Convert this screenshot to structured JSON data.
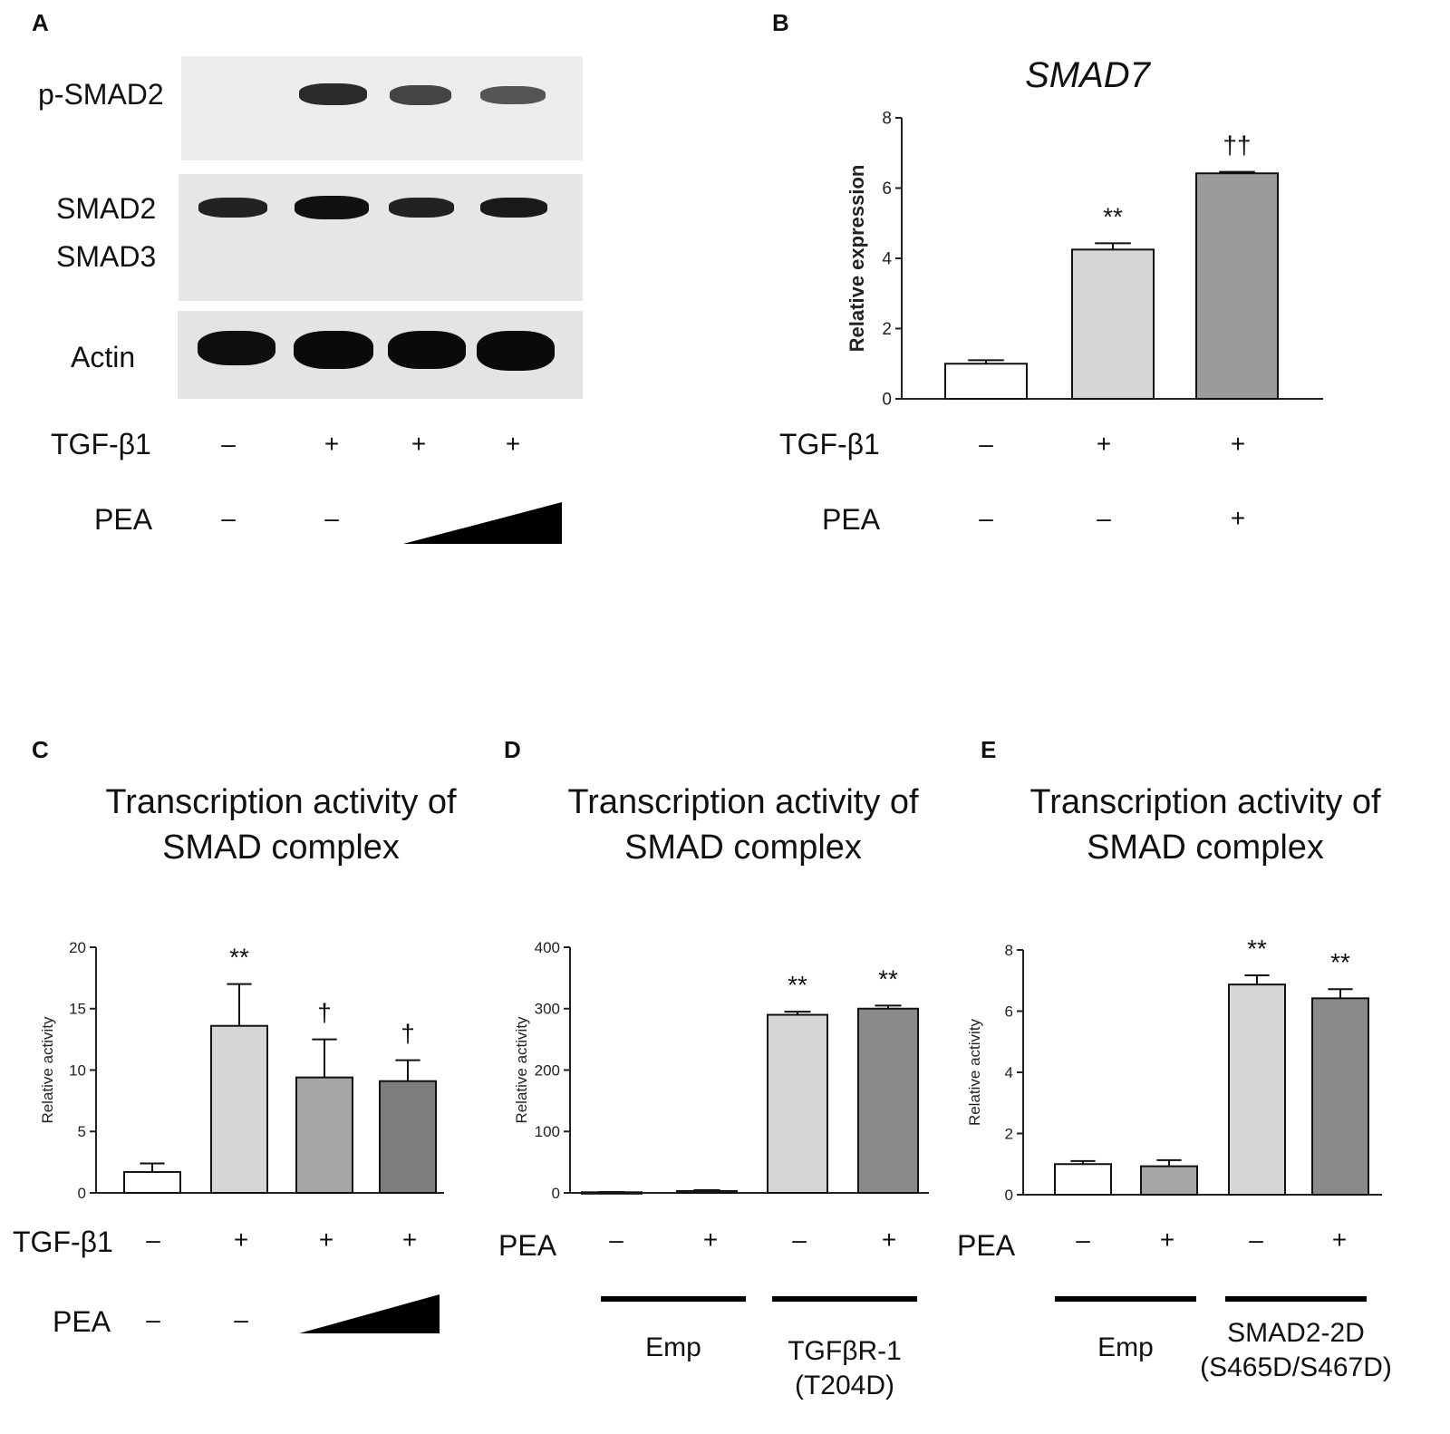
{
  "panel_a": {
    "letter": "A",
    "blot_labels": [
      "p-SMAD2",
      "SMAD2",
      "SMAD3",
      "Actin"
    ],
    "tgf_label": "TGF-β1",
    "tgf_signs": [
      "–",
      "+",
      "+",
      "+"
    ],
    "pea_label": "PEA",
    "pea_signs": [
      "–",
      "–"
    ],
    "pea_gradient": "increasing PEA dose (wedge)"
  },
  "panel_b": {
    "letter": "B",
    "tgf_label": "TGF-β1",
    "tgf_signs": [
      "–",
      "+",
      "+"
    ],
    "pea_label": "PEA",
    "pea_signs": [
      "–",
      "–",
      "+"
    ]
  },
  "panel_c": {
    "letter": "C",
    "title_line1": "Transcription activity of",
    "title_line2": "SMAD complex",
    "tgf_label": "TGF-β1",
    "tgf_signs": [
      "–",
      "+",
      "+",
      "+"
    ],
    "pea_label": "PEA",
    "pea_signs": [
      "–",
      "–"
    ]
  },
  "panel_d": {
    "letter": "D",
    "title_line1": "Transcription activity of",
    "title_line2": "SMAD complex",
    "pea_label": "PEA",
    "pea_signs": [
      "–",
      "+",
      "–",
      "+"
    ],
    "group1": "Emp",
    "group2_line1": "TGFβR-1",
    "group2_line2": "(T204D)"
  },
  "panel_e": {
    "letter": "E",
    "title_line1": "Transcription activity of",
    "title_line2": "SMAD complex",
    "pea_label": "PEA",
    "pea_signs": [
      "–",
      "+",
      "–",
      "+"
    ],
    "group1": "Emp",
    "group2_line1": "SMAD2-2D",
    "group2_line2": "(S465D/S467D)"
  },
  "chart_data": [
    {
      "id": "B",
      "type": "bar",
      "title": "SMAD7",
      "ylabel": "Relative expression",
      "ylim": [
        0,
        8
      ],
      "yticks": [
        "0",
        "2",
        "4",
        "6",
        "8"
      ],
      "values": [
        1.0,
        4.25,
        6.42
      ],
      "errors": [
        0.1,
        0.18,
        0.04
      ],
      "colors": [
        "#ffffff",
        "#d6d6d6",
        "#9b9b9b"
      ],
      "annotations": [
        "",
        "**",
        "††"
      ]
    },
    {
      "id": "C",
      "type": "bar",
      "ylabel": "Relative activity",
      "ylim": [
        0,
        20
      ],
      "yticks": [
        "0",
        "5",
        "10",
        "15",
        "20"
      ],
      "values": [
        1.7,
        13.6,
        9.4,
        9.1
      ],
      "errors": [
        0.7,
        3.4,
        3.1,
        1.7
      ],
      "colors": [
        "#ffffff",
        "#d6d6d6",
        "#a6a6a6",
        "#7e7e7e"
      ],
      "annotations": [
        "",
        "**",
        "†",
        "†"
      ]
    },
    {
      "id": "D",
      "type": "bar",
      "ylabel": "Relative activity",
      "ylim": [
        0,
        400
      ],
      "yticks": [
        "0",
        "100",
        "200",
        "300",
        "400"
      ],
      "values": [
        1,
        3,
        290,
        300
      ],
      "errors": [
        0.5,
        1.5,
        5,
        5
      ],
      "colors": [
        "#ffffff",
        "#ffffff",
        "#d6d6d6",
        "#8a8a8a"
      ],
      "annotations": [
        "",
        "",
        "**",
        "**"
      ]
    },
    {
      "id": "E",
      "type": "bar",
      "ylabel": "Relative activity",
      "ylim": [
        0,
        8
      ],
      "yticks": [
        "0",
        "2",
        "4",
        "6",
        "8"
      ],
      "values": [
        1.0,
        0.93,
        6.87,
        6.42
      ],
      "errors": [
        0.1,
        0.2,
        0.3,
        0.3
      ],
      "colors": [
        "#ffffff",
        "#a6a6a6",
        "#d6d6d6",
        "#8a8a8a"
      ],
      "annotations": [
        "",
        "",
        "**",
        "**"
      ]
    }
  ]
}
